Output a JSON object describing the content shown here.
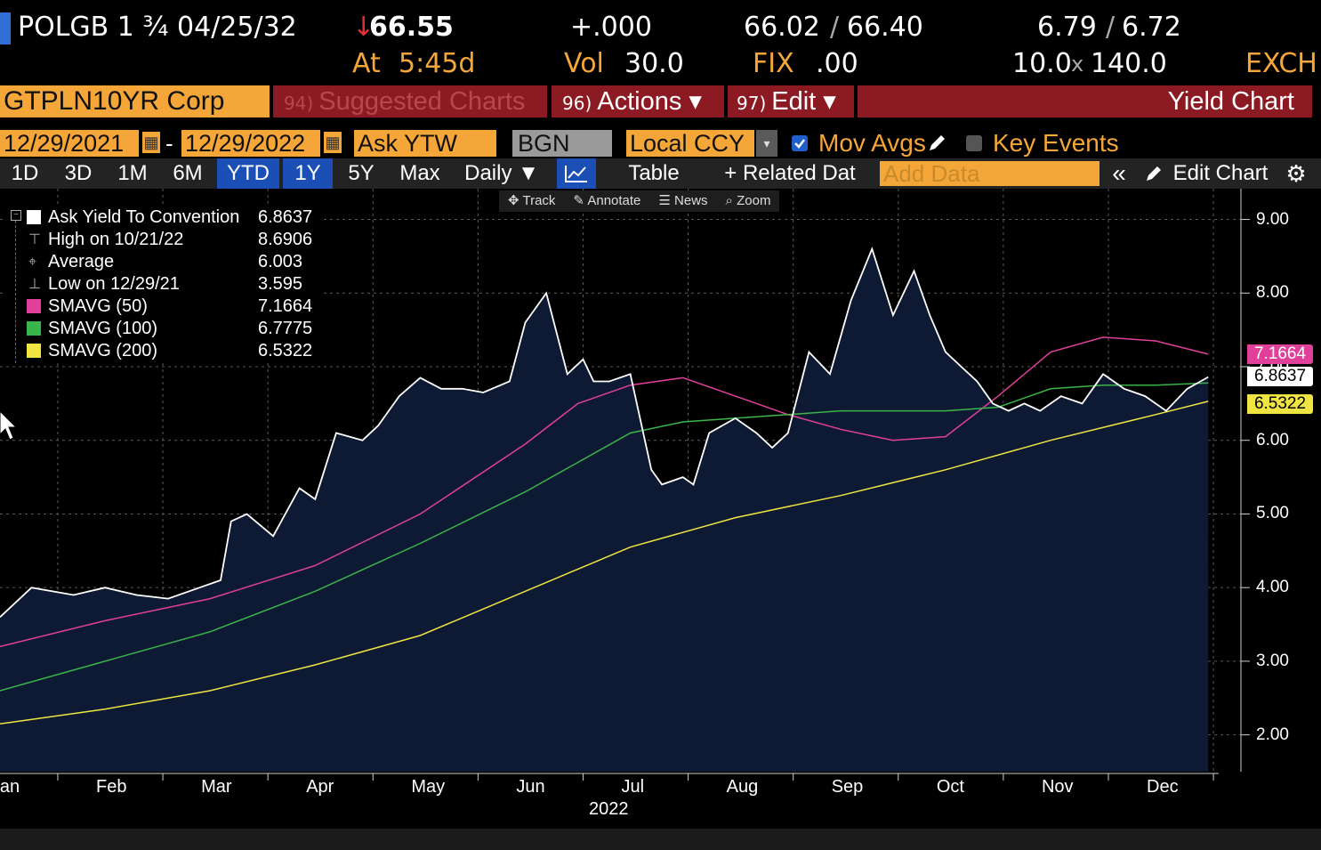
{
  "quote": {
    "security": "POLGB 1 ¾ 04/25/32",
    "arrow": "↓",
    "last": "66.55",
    "at_label": "At",
    "time": "5:45d",
    "change": "+.000",
    "vol_label": "Vol",
    "vol": "30.0",
    "bid_ask": "66.02",
    "bid_ask_sep": "/",
    "bid_ask_2": "66.40",
    "fix_label": "FIX",
    "fix": ".00",
    "yields": "6.79",
    "yields_sep": "/",
    "yields_2": "6.72",
    "size_1": "10.0",
    "size_x": "x",
    "size_2": "140.0",
    "exch": "EXCH"
  },
  "titlebar": {
    "ticker": "GTPLN10YR Corp",
    "suggested_num": "94)",
    "suggested": "Suggested Charts",
    "actions_num": "96)",
    "actions": "Actions ▾",
    "edit_num": "97)",
    "edit": "Edit ▾",
    "title": "Yield Chart"
  },
  "controls": {
    "start_date": "12/29/2021",
    "date_sep": "-",
    "end_date": "12/29/2022",
    "field": "Ask YTW",
    "source": "BGN",
    "currency": "Local CCY",
    "mov_avgs": "Mov Avgs",
    "key_events": "Key Events"
  },
  "tabs": {
    "d1": "1D",
    "d3": "3D",
    "m1": "1M",
    "m6": "6M",
    "ytd": "YTD",
    "y1": "1Y",
    "y5": "5Y",
    "max": "Max",
    "freq": "Daily ▼",
    "table": "Table",
    "related": "+ Related Dat",
    "add_data": "Add Data",
    "collapse": "«",
    "edit_chart": "Edit Chart"
  },
  "tools": {
    "track": "Track",
    "annotate": "Annotate",
    "news": "News",
    "zoom": "Zoom"
  },
  "legend": [
    {
      "name": "Ask Yield To Convention",
      "value": "6.8637",
      "color": "#ffffff"
    },
    {
      "name": "High on 10/21/22",
      "value": "8.6906",
      "color": ""
    },
    {
      "name": "Average",
      "value": "6.003",
      "color": ""
    },
    {
      "name": "Low on 12/29/21",
      "value": "3.595",
      "color": ""
    },
    {
      "name": "SMAVG (50)",
      "value": "7.1664",
      "color": "#e0409a"
    },
    {
      "name": "SMAVG (100)",
      "value": "6.7775",
      "color": "#39b54a"
    },
    {
      "name": "SMAVG (200)",
      "value": "6.5322",
      "color": "#f0e442"
    }
  ],
  "colors": {
    "accent_orange": "#f5a638",
    "title_red": "#8b1a22",
    "selected_blue": "#1b4fb5",
    "area_fill": "#0e1a33"
  },
  "chart_data": {
    "type": "area",
    "ylim": [
      1.5,
      9.2
    ],
    "y_ticks": [
      "9.00",
      "8.00",
      "7.00",
      "6.00",
      "5.00",
      "4.00",
      "3.00",
      "2.00"
    ],
    "x_ticks": [
      "Jan",
      "Feb",
      "Mar",
      "Apr",
      "May",
      "Jun",
      "Jul",
      "Aug",
      "Sep",
      "Oct",
      "Nov",
      "Dec"
    ],
    "x_year": "2022",
    "series": [
      {
        "name": "Ask Yield To Convention",
        "color": "#ffffff",
        "x": [
          0,
          0.3,
          0.7,
          1.0,
          1.3,
          1.6,
          1.9,
          2.1,
          2.2,
          2.35,
          2.6,
          2.85,
          3.0,
          3.2,
          3.45,
          3.6,
          3.8,
          4.0,
          4.2,
          4.4,
          4.6,
          4.85,
          5.0,
          5.2,
          5.4,
          5.55,
          5.65,
          5.8,
          6.0,
          6.2,
          6.3,
          6.5,
          6.6,
          6.75,
          7.0,
          7.2,
          7.35,
          7.5,
          7.7,
          7.9,
          8.1,
          8.3,
          8.5,
          8.7,
          8.85,
          9.0,
          9.15,
          9.3,
          9.45,
          9.6,
          9.75,
          9.9,
          10.1,
          10.3,
          10.5,
          10.7,
          10.9,
          11.1,
          11.3,
          11.5
        ],
        "values": [
          3.6,
          4.0,
          3.9,
          4.0,
          3.9,
          3.85,
          4.0,
          4.1,
          4.9,
          5.0,
          4.7,
          5.35,
          5.2,
          6.1,
          6.0,
          6.2,
          6.6,
          6.85,
          6.7,
          6.7,
          6.65,
          6.8,
          7.6,
          8.0,
          6.9,
          7.1,
          6.8,
          6.8,
          6.9,
          5.6,
          5.4,
          5.5,
          5.4,
          6.1,
          6.3,
          6.1,
          5.9,
          6.1,
          7.2,
          6.9,
          7.9,
          8.6,
          7.7,
          8.3,
          7.7,
          7.2,
          7.0,
          6.8,
          6.5,
          6.4,
          6.5,
          6.4,
          6.6,
          6.5,
          6.9,
          6.7,
          6.6,
          6.4,
          6.7,
          6.86
        ]
      },
      {
        "name": "SMAVG (50)",
        "color": "#e0409a",
        "x": [
          0,
          1,
          2,
          3,
          4,
          5,
          5.5,
          6,
          6.5,
          7,
          7.5,
          8,
          8.5,
          9,
          9.5,
          10,
          10.5,
          11,
          11.5
        ],
        "values": [
          3.2,
          3.55,
          3.85,
          4.3,
          5.0,
          5.95,
          6.5,
          6.75,
          6.85,
          6.6,
          6.35,
          6.15,
          6.0,
          6.05,
          6.6,
          7.2,
          7.4,
          7.35,
          7.17
        ]
      },
      {
        "name": "SMAVG (100)",
        "color": "#39b54a",
        "x": [
          0,
          1,
          2,
          3,
          4,
          5,
          6,
          6.5,
          7,
          7.5,
          8,
          8.5,
          9,
          9.5,
          10,
          10.5,
          11,
          11.5
        ],
        "values": [
          2.6,
          3.0,
          3.4,
          3.95,
          4.6,
          5.3,
          6.1,
          6.25,
          6.3,
          6.35,
          6.4,
          6.4,
          6.4,
          6.45,
          6.7,
          6.75,
          6.75,
          6.78
        ]
      },
      {
        "name": "SMAVG (200)",
        "color": "#f0e442",
        "x": [
          0,
          1,
          2,
          3,
          4,
          5,
          6,
          7,
          8,
          9,
          10,
          11,
          11.5
        ],
        "values": [
          2.15,
          2.35,
          2.6,
          2.95,
          3.35,
          3.95,
          4.55,
          4.95,
          5.25,
          5.6,
          6.0,
          6.35,
          6.53
        ]
      }
    ],
    "value_tags": [
      {
        "text": "7.1664",
        "value": 7.1664,
        "bg": "#e0409a",
        "fg": "#ffffff"
      },
      {
        "text": "6.8637",
        "value": 6.8637,
        "bg": "#ffffff",
        "fg": "#000000"
      },
      {
        "text": "6.5322",
        "value": 6.5322,
        "bg": "#f0e442",
        "fg": "#000000"
      }
    ]
  }
}
